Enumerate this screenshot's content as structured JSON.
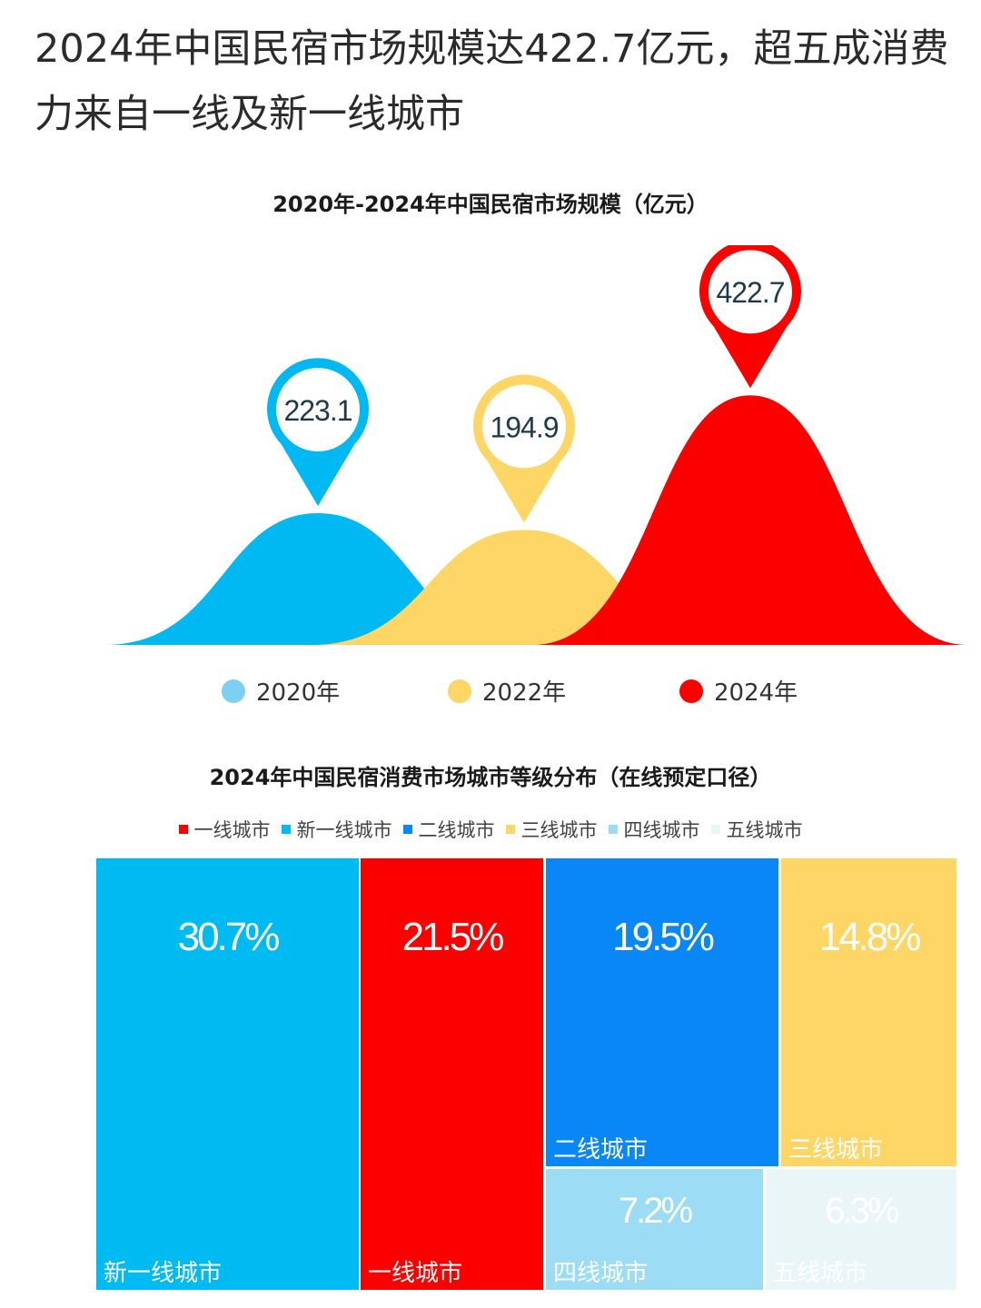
{
  "headline": "2024年中国民宿市场规模达422.7亿元，超五成消费力来自一线及新一线城市",
  "chart_data": [
    {
      "type": "area",
      "title": "2020年-2024年中国民宿市场规模（亿元）",
      "categories": [
        "2020年",
        "2022年",
        "2024年"
      ],
      "values": [
        223.1,
        194.9,
        422.7
      ],
      "value_labels": [
        "223.1",
        "194.9",
        "422.7"
      ],
      "colors": [
        "#00b8f2",
        "#fdd665",
        "#fc0000"
      ],
      "legend_colors": [
        "#7dd0f4",
        "#fdd665",
        "#fc0000"
      ],
      "legend": "bottom"
    },
    {
      "type": "treemap",
      "title": "2024年中国民宿消费市场城市等级分布（在线预定口径）",
      "legend": "top",
      "items": [
        {
          "name": "新一线城市",
          "value": 30.7,
          "label": "30.7%",
          "color": "#00baf2"
        },
        {
          "name": "一线城市",
          "value": 21.5,
          "label": "21.5%",
          "color": "#fc0000"
        },
        {
          "name": "二线城市",
          "value": 19.5,
          "label": "19.5%",
          "color": "#0a87f7"
        },
        {
          "name": "三线城市",
          "value": 14.8,
          "label": "14.8%",
          "color": "#fdd665"
        },
        {
          "name": "四线城市",
          "value": 7.2,
          "label": "7.2%",
          "color": "#9ddcf5"
        },
        {
          "name": "五线城市",
          "value": 6.3,
          "label": "6.3%",
          "color": "#e9f5f7"
        }
      ],
      "legend_order": [
        "一线城市",
        "新一线城市",
        "二线城市",
        "三线城市",
        "四线城市",
        "五线城市"
      ]
    }
  ]
}
